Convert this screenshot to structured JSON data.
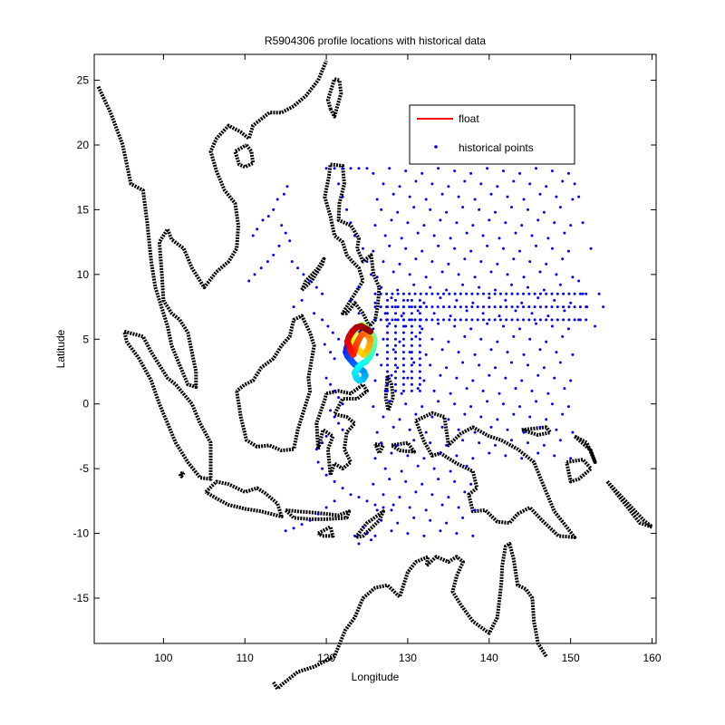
{
  "chart_data": {
    "type": "scatter",
    "title": "R5904306 profile locations with historical data",
    "xlabel": "Longitude",
    "ylabel": "Latitude",
    "xlim": [
      91.5,
      160.5
    ],
    "ylim": [
      -18.5,
      27
    ],
    "x_ticks": [
      100,
      110,
      120,
      130,
      140,
      150,
      160
    ],
    "y_ticks": [
      25,
      20,
      15,
      10,
      5,
      0,
      -5,
      -10,
      -15
    ],
    "grid": false,
    "legend": {
      "placement": "top-right",
      "entries": [
        {
          "label": "float",
          "color": "#ff0000",
          "marker": "line"
        },
        {
          "label": "historical points",
          "color": "#0000ff",
          "marker": "dot"
        }
      ]
    },
    "coastline_color": "#000000",
    "colors": {
      "historical": "#0000ff",
      "float_trajectory_colormap": "jet"
    },
    "series": [
      {
        "name": "float",
        "points": [
          [
            125.2,
            5.4
          ],
          [
            125.0,
            5.5
          ],
          [
            124.6,
            5.6
          ],
          [
            124.2,
            5.7
          ],
          [
            123.8,
            5.8
          ],
          [
            123.5,
            5.6
          ],
          [
            123.2,
            5.3
          ],
          [
            122.9,
            5.0
          ],
          [
            122.7,
            4.7
          ],
          [
            122.5,
            4.3
          ],
          [
            122.4,
            4.0
          ],
          [
            122.6,
            3.7
          ],
          [
            123.0,
            3.4
          ],
          [
            123.4,
            3.1
          ],
          [
            123.8,
            2.9
          ],
          [
            124.2,
            2.7
          ],
          [
            124.6,
            2.5
          ],
          [
            124.8,
            2.2
          ],
          [
            124.5,
            1.9
          ],
          [
            124.1,
            1.8
          ],
          [
            123.7,
            2.0
          ],
          [
            123.5,
            2.4
          ],
          [
            123.9,
            2.8
          ],
          [
            124.4,
            3.1
          ],
          [
            124.9,
            3.3
          ],
          [
            125.3,
            3.6
          ],
          [
            125.6,
            4.0
          ],
          [
            125.8,
            4.4
          ],
          [
            125.9,
            4.9
          ],
          [
            125.7,
            5.3
          ],
          [
            125.3,
            5.6
          ],
          [
            124.9,
            5.9
          ],
          [
            124.5,
            6.1
          ],
          [
            124.0,
            6.0
          ],
          [
            123.6,
            5.7
          ],
          [
            123.3,
            5.4
          ],
          [
            123.1,
            5.0
          ],
          [
            123.4,
            4.6
          ],
          [
            123.8,
            4.3
          ],
          [
            124.2,
            4.0
          ],
          [
            124.6,
            3.8
          ],
          [
            125.0,
            4.1
          ],
          [
            125.3,
            4.5
          ],
          [
            125.4,
            5.0
          ],
          [
            125.1,
            5.3
          ],
          [
            124.7,
            5.5
          ],
          [
            124.3,
            5.3
          ],
          [
            124.0,
            5.0
          ],
          [
            123.7,
            4.6
          ],
          [
            123.5,
            4.2
          ],
          [
            123.3,
            3.8
          ],
          [
            123.0,
            4.1
          ],
          [
            122.8,
            4.5
          ],
          [
            122.6,
            4.8
          ],
          [
            122.8,
            5.2
          ],
          [
            123.2,
            5.6
          ],
          [
            123.7,
            5.9
          ],
          [
            124.3,
            6.0
          ],
          [
            124.9,
            5.8
          ],
          [
            125.4,
            5.6
          ]
        ]
      },
      {
        "name": "historical points",
        "generated_grid": {
          "lon_lines": [
            126,
            127,
            128,
            129,
            130,
            131,
            132,
            133,
            134,
            135,
            136,
            137,
            138,
            139,
            140,
            141,
            142,
            143,
            144,
            145,
            146,
            147,
            148,
            149,
            150
          ],
          "lat_lines": [
            18,
            17,
            16,
            15,
            14,
            13,
            12,
            11,
            10,
            9,
            8,
            7,
            6,
            5,
            4,
            3,
            2,
            1,
            0,
            -1,
            -2,
            -3,
            -4,
            -5,
            -6,
            -7,
            -8,
            -9,
            -10
          ]
        },
        "extra_points": [
          [
            115.2,
            16.8
          ],
          [
            114.8,
            16.2
          ],
          [
            114.0,
            15.8
          ],
          [
            113.5,
            15.0
          ],
          [
            112.9,
            14.5
          ],
          [
            112.2,
            14.2
          ],
          [
            111.5,
            13.5
          ],
          [
            111.0,
            13.0
          ],
          [
            114.5,
            13.8
          ],
          [
            115.0,
            13.2
          ],
          [
            115.5,
            12.6
          ],
          [
            114.2,
            12.2
          ],
          [
            113.5,
            11.5
          ],
          [
            112.8,
            11.0
          ],
          [
            112.0,
            10.5
          ],
          [
            111.2,
            10.0
          ],
          [
            110.5,
            9.5
          ],
          [
            115.8,
            11.0
          ],
          [
            116.5,
            10.5
          ],
          [
            117.2,
            10.0
          ],
          [
            118.0,
            9.5
          ],
          [
            118.8,
            9.0
          ],
          [
            119.5,
            8.5
          ],
          [
            117.0,
            8.0
          ],
          [
            116.0,
            7.5
          ],
          [
            118.5,
            7.0
          ],
          [
            119.5,
            6.5
          ],
          [
            120.2,
            6.0
          ],
          [
            120.8,
            5.5
          ],
          [
            121.5,
            5.0
          ],
          [
            119.8,
            4.6
          ],
          [
            120.5,
            4.0
          ],
          [
            121.0,
            3.5
          ],
          [
            120.0,
            2.0
          ],
          [
            120.5,
            1.5
          ],
          [
            121.0,
            1.0
          ],
          [
            121.5,
            0.5
          ],
          [
            122.0,
            0.0
          ],
          [
            120.5,
            -0.5
          ],
          [
            121.0,
            -1.0
          ],
          [
            121.5,
            -1.5
          ],
          [
            122.0,
            -2.0
          ],
          [
            120.0,
            -2.5
          ],
          [
            119.5,
            -3.0
          ],
          [
            118.8,
            -3.5
          ],
          [
            119.0,
            -4.5
          ],
          [
            119.5,
            -5.0
          ],
          [
            120.0,
            -5.5
          ],
          [
            121.0,
            -6.0
          ],
          [
            122.0,
            -6.5
          ],
          [
            123.0,
            -7.0
          ],
          [
            124.0,
            -7.2
          ],
          [
            125.0,
            -7.5
          ],
          [
            126.0,
            -7.8
          ],
          [
            127.0,
            -8.0
          ],
          [
            128.0,
            -8.2
          ],
          [
            121.0,
            -7.5
          ],
          [
            120.0,
            -8.0
          ],
          [
            119.0,
            -8.5
          ],
          [
            118.0,
            -9.0
          ],
          [
            117.0,
            -9.3
          ],
          [
            116.0,
            -9.6
          ],
          [
            115.0,
            -9.8
          ],
          [
            124.5,
            -9.5
          ],
          [
            125.0,
            -10.0
          ],
          [
            125.5,
            -10.5
          ],
          [
            123.5,
            -10.2
          ],
          [
            124.0,
            -10.8
          ],
          [
            120.0,
            18.2
          ],
          [
            121.0,
            18.2
          ],
          [
            122.0,
            18.2
          ],
          [
            123.0,
            18.2
          ],
          [
            124.0,
            18.2
          ],
          [
            125.0,
            18.2
          ],
          [
            121.5,
            17.0
          ],
          [
            122.0,
            16.0
          ],
          [
            122.5,
            15.0
          ],
          [
            123.0,
            14.0
          ],
          [
            123.5,
            13.0
          ],
          [
            124.5,
            12.0
          ],
          [
            125.0,
            11.0
          ],
          [
            125.5,
            10.0
          ],
          [
            124.0,
            9.0
          ],
          [
            123.0,
            8.0
          ],
          [
            124.0,
            7.0
          ],
          [
            151.0,
            9.5
          ],
          [
            151.5,
            8.5
          ],
          [
            152.0,
            7.5
          ],
          [
            151.0,
            6.5
          ],
          [
            153.0,
            6.0
          ],
          [
            152.5,
            12.0
          ],
          [
            151.5,
            14.0
          ],
          [
            151.0,
            16.0
          ],
          [
            150.5,
            17.0
          ],
          [
            154.0,
            7.5
          ],
          [
            153.5,
            8.5
          ]
        ]
      }
    ]
  }
}
